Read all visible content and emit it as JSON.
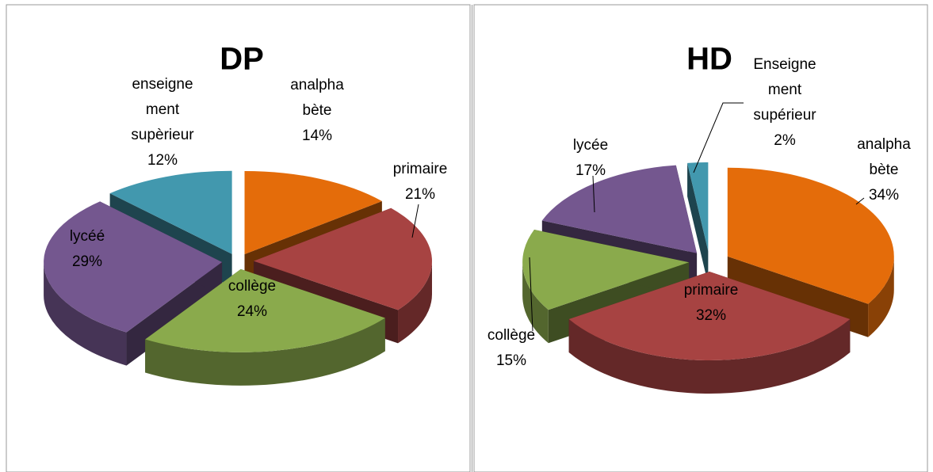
{
  "chart_data": [
    {
      "type": "pie",
      "title": "DP",
      "categories": [
        "analphabète",
        "primaire",
        "collège",
        "lycéé",
        "enseignement supèrieur"
      ],
      "values": [
        14,
        21,
        24,
        29,
        12
      ],
      "value_labels": [
        "14%",
        "21%",
        "24%",
        "29%",
        "12%"
      ],
      "colors": [
        "#e46c0a",
        "#a74342",
        "#8aaa4c",
        "#74578f",
        "#4298ae"
      ]
    },
    {
      "type": "pie",
      "title": "HD",
      "categories": [
        "analphabète",
        "primaire",
        "collège",
        "lycée",
        "Enseignement supérieur"
      ],
      "values": [
        34,
        32,
        15,
        17,
        2
      ],
      "value_labels": [
        "34%",
        "32%",
        "15%",
        "17%",
        "2%"
      ],
      "colors": [
        "#e46c0a",
        "#a74342",
        "#8aaa4c",
        "#74578f",
        "#4298ae"
      ]
    }
  ]
}
